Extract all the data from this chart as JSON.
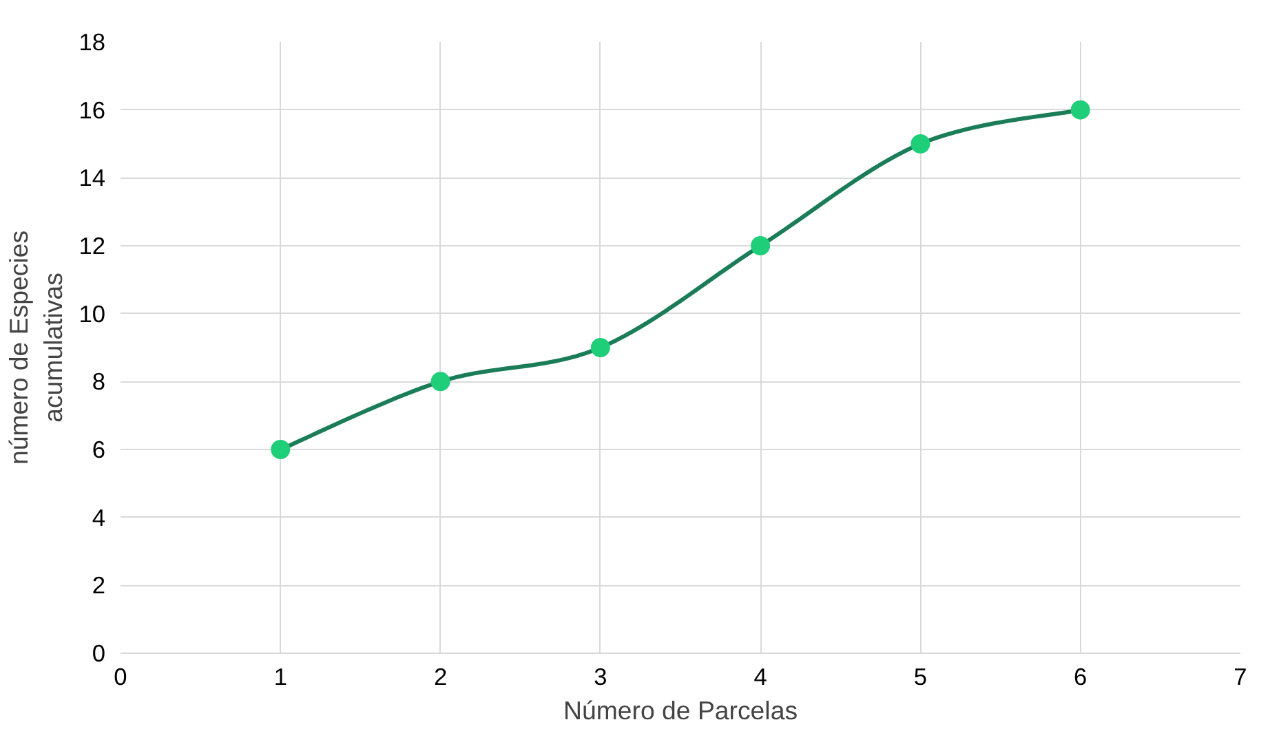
{
  "chart_data": {
    "type": "line",
    "xlabel": "Número de Parcelas",
    "ylabel": "número de Especies\nacumulativas",
    "x": [
      1,
      2,
      3,
      4,
      5,
      6
    ],
    "series": [
      {
        "color": "#1b7d57",
        "colors": [
          "#1fce78",
          "#1fce78",
          "#1fce78",
          "#1fce78",
          "#1fce78",
          "#1fce78"
        ],
        "values": [
          6,
          8,
          9,
          12,
          15,
          16
        ]
      }
    ],
    "xlim": [
      0,
      7
    ],
    "xticks": [
      0,
      1,
      2,
      3,
      4,
      5,
      6,
      7
    ],
    "ylim": [
      0,
      18
    ],
    "yticks": [
      0,
      2,
      4,
      6,
      8,
      10,
      12,
      14,
      16,
      18
    ],
    "grid": true,
    "marker": "circle",
    "line_style": "solid"
  }
}
